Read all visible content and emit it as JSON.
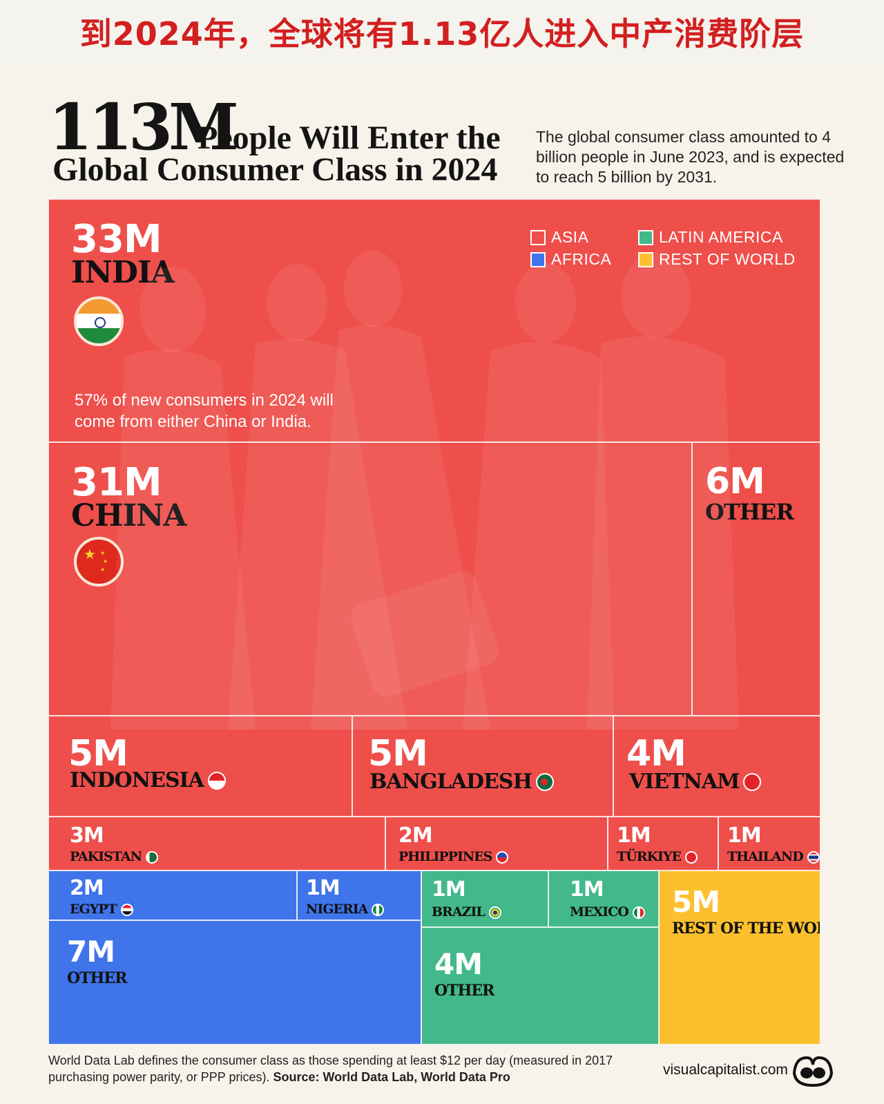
{
  "banner": {
    "text": "到2024年，全球将有1.13亿人进入中产消费阶层"
  },
  "header": {
    "big_number": "113M",
    "headline_line1": "People Will Enter the",
    "headline_line2": "Global Consumer Class in 2024",
    "intro": "The global consumer class amounted to 4 billion people in June 2023, and is expected to reach 5 billion by 2031."
  },
  "legend": {
    "items": [
      {
        "label": "ASIA",
        "color": "#ee4f4b"
      },
      {
        "label": "LATIN AMERICA",
        "color": "#42b88b"
      },
      {
        "label": "AFRICA",
        "color": "#3f74ea"
      },
      {
        "label": "REST OF WORLD",
        "color": "#fcc02f"
      }
    ]
  },
  "note": "57% of new consumers in 2024 will come from either China or India.",
  "chart_data": {
    "type": "treemap",
    "unit": "M",
    "groups": [
      {
        "region": "ASIA",
        "color": "#ee4f4b",
        "items": [
          {
            "label": "INDIA",
            "value_text": "33M",
            "value": 33
          },
          {
            "label": "CHINA",
            "value_text": "31M",
            "value": 31
          },
          {
            "label": "OTHER",
            "value_text": "6M",
            "value": 6
          },
          {
            "label": "INDONESIA",
            "value_text": "5M",
            "value": 5
          },
          {
            "label": "BANGLADESH",
            "value_text": "5M",
            "value": 5
          },
          {
            "label": "VIETNAM",
            "value_text": "4M",
            "value": 4
          },
          {
            "label": "PAKISTAN",
            "value_text": "3M",
            "value": 3
          },
          {
            "label": "PHILIPPINES",
            "value_text": "2M",
            "value": 2
          },
          {
            "label": "TÜRKIYE",
            "value_text": "1M",
            "value": 1
          },
          {
            "label": "THAILAND",
            "value_text": "1M",
            "value": 1
          }
        ]
      },
      {
        "region": "AFRICA",
        "color": "#3f74ea",
        "items": [
          {
            "label": "EGYPT",
            "value_text": "2M",
            "value": 2
          },
          {
            "label": "NIGERIA",
            "value_text": "1M",
            "value": 1
          },
          {
            "label": "OTHER",
            "value_text": "7M",
            "value": 7
          }
        ]
      },
      {
        "region": "LATIN AMERICA",
        "color": "#42b88b",
        "items": [
          {
            "label": "BRAZIL",
            "value_text": "1M",
            "value": 1
          },
          {
            "label": "MEXICO",
            "value_text": "1M",
            "value": 1
          },
          {
            "label": "OTHER",
            "value_text": "4M",
            "value": 4
          }
        ]
      },
      {
        "region": "REST OF WORLD",
        "color": "#fcc02f",
        "items": [
          {
            "label": "REST OF THE WORLD",
            "value_text": "5M",
            "value": 5
          }
        ]
      }
    ]
  },
  "footer": {
    "text": "World Data Lab defines the consumer class as those spending at least $12 per day (measured in 2017 purchasing power parity, or PPP prices).",
    "source": "Source: World Data Lab, World Data Pro",
    "site": "visualcapitalist.com"
  }
}
